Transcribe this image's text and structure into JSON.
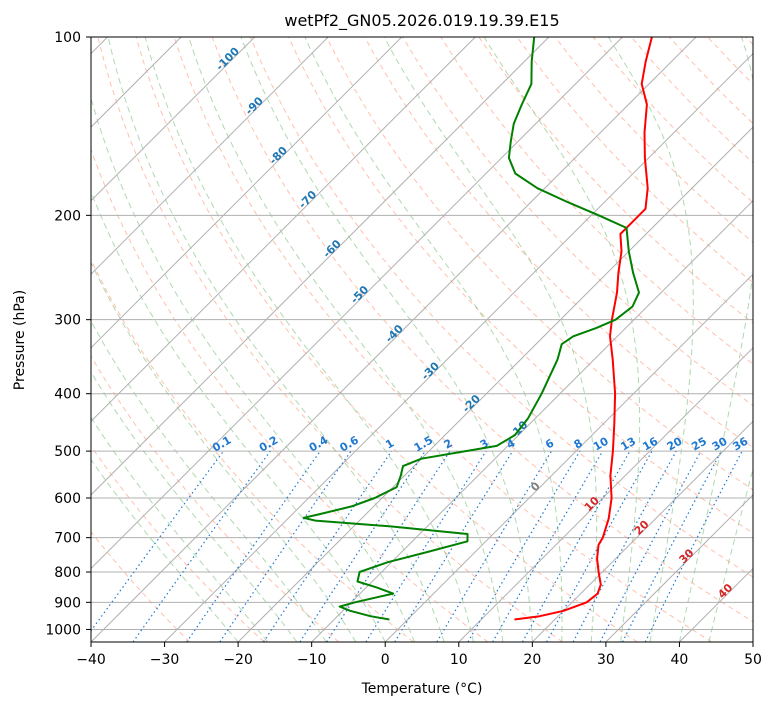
{
  "chart_data": {
    "type": "line",
    "title": "wetPf2_GN05.2026.019.19.39.E15",
    "xlabel": "Temperature (°C)",
    "ylabel": "Pressure (hPa)",
    "xlim": [
      -40,
      50
    ],
    "ylim": [
      1050,
      100
    ],
    "y_scale": "log",
    "skew": true,
    "grid": true,
    "x_ticks": [
      -40,
      -30,
      -20,
      -10,
      0,
      10,
      20,
      30,
      40,
      50
    ],
    "y_ticks": [
      100,
      200,
      300,
      400,
      500,
      600,
      700,
      800,
      900,
      1000
    ],
    "colors": {
      "temperature": "#ff0000",
      "dewpoint": "#008000",
      "dry_adiabat": "#ff8c69",
      "moist_adiabat": "#90c890",
      "mixing_ratio": "#1e78d2",
      "isotherm_label_cold": "#1f77b4",
      "isotherm_label_warm": "#d62728",
      "isotherm_label_zero": "#808080",
      "grid": "#b0b0b0"
    },
    "series": [
      {
        "key": "temperature",
        "points": [
          [
            962,
            14.5
          ],
          [
            950,
            17.5
          ],
          [
            930,
            20
          ],
          [
            900,
            22
          ],
          [
            870,
            22.3
          ],
          [
            840,
            21.5
          ],
          [
            800,
            19.5
          ],
          [
            760,
            17.5
          ],
          [
            720,
            15.8
          ],
          [
            700,
            15.4
          ],
          [
            650,
            13.6
          ],
          [
            600,
            11.2
          ],
          [
            550,
            8.0
          ],
          [
            500,
            5.0
          ],
          [
            450,
            1.5
          ],
          [
            400,
            -2.5
          ],
          [
            350,
            -7.5
          ],
          [
            320,
            -11.0
          ],
          [
            300,
            -13.0
          ],
          [
            270,
            -16.0
          ],
          [
            250,
            -18.5
          ],
          [
            230,
            -21.0
          ],
          [
            215,
            -23.5
          ],
          [
            205,
            -23.5
          ],
          [
            195,
            -23.5
          ],
          [
            180,
            -26.0
          ],
          [
            160,
            -30.5
          ],
          [
            145,
            -34.0
          ],
          [
            130,
            -37.5
          ],
          [
            120,
            -41.0
          ],
          [
            110,
            -43.5
          ],
          [
            100,
            -46.0
          ]
        ]
      },
      {
        "key": "dewpoint",
        "points": [
          [
            962,
            -2.5
          ],
          [
            950,
            -5.5
          ],
          [
            930,
            -9.0
          ],
          [
            915,
            -11.0
          ],
          [
            900,
            -9.5
          ],
          [
            870,
            -5.5
          ],
          [
            850,
            -8.5
          ],
          [
            830,
            -12.0
          ],
          [
            800,
            -13.0
          ],
          [
            770,
            -10.5
          ],
          [
            740,
            -6.5
          ],
          [
            710,
            -2.5
          ],
          [
            690,
            -3.5
          ],
          [
            670,
            -15.0
          ],
          [
            655,
            -26.0
          ],
          [
            648,
            -28.0
          ],
          [
            640,
            -26.5
          ],
          [
            620,
            -23.0
          ],
          [
            600,
            -21.0
          ],
          [
            575,
            -19.5
          ],
          [
            550,
            -20.5
          ],
          [
            530,
            -21.5
          ],
          [
            515,
            -20.0
          ],
          [
            500,
            -15.0
          ],
          [
            490,
            -11.5
          ],
          [
            470,
            -10.5
          ],
          [
            440,
            -11.0
          ],
          [
            400,
            -12.5
          ],
          [
            350,
            -15.0
          ],
          [
            330,
            -16.5
          ],
          [
            320,
            -16.0
          ],
          [
            310,
            -14.0
          ],
          [
            300,
            -12.5
          ],
          [
            285,
            -12.0
          ],
          [
            270,
            -13.0
          ],
          [
            250,
            -16.5
          ],
          [
            230,
            -20.0
          ],
          [
            210,
            -23.5
          ],
          [
            200,
            -29.0
          ],
          [
            190,
            -35.0
          ],
          [
            180,
            -41.0
          ],
          [
            170,
            -46.0
          ],
          [
            160,
            -49.0
          ],
          [
            150,
            -51.0
          ],
          [
            140,
            -53.0
          ],
          [
            130,
            -54.5
          ],
          [
            120,
            -56.0
          ],
          [
            110,
            -59.0
          ],
          [
            100,
            -62.0
          ]
        ]
      }
    ],
    "mixing_ratio_labels": [
      "0.1",
      "0.2",
      "0.4",
      "0.6",
      "1",
      "1.5",
      "2",
      "3",
      "4",
      "6",
      "8",
      "10",
      "13",
      "16",
      "20",
      "25",
      "30",
      "36"
    ],
    "isotherm_labels": [
      "-100",
      "-90",
      "-80",
      "-70",
      "-60",
      "-50",
      "-40",
      "-30",
      "-20",
      "-10",
      "0",
      "10",
      "20",
      "30",
      "40"
    ]
  }
}
